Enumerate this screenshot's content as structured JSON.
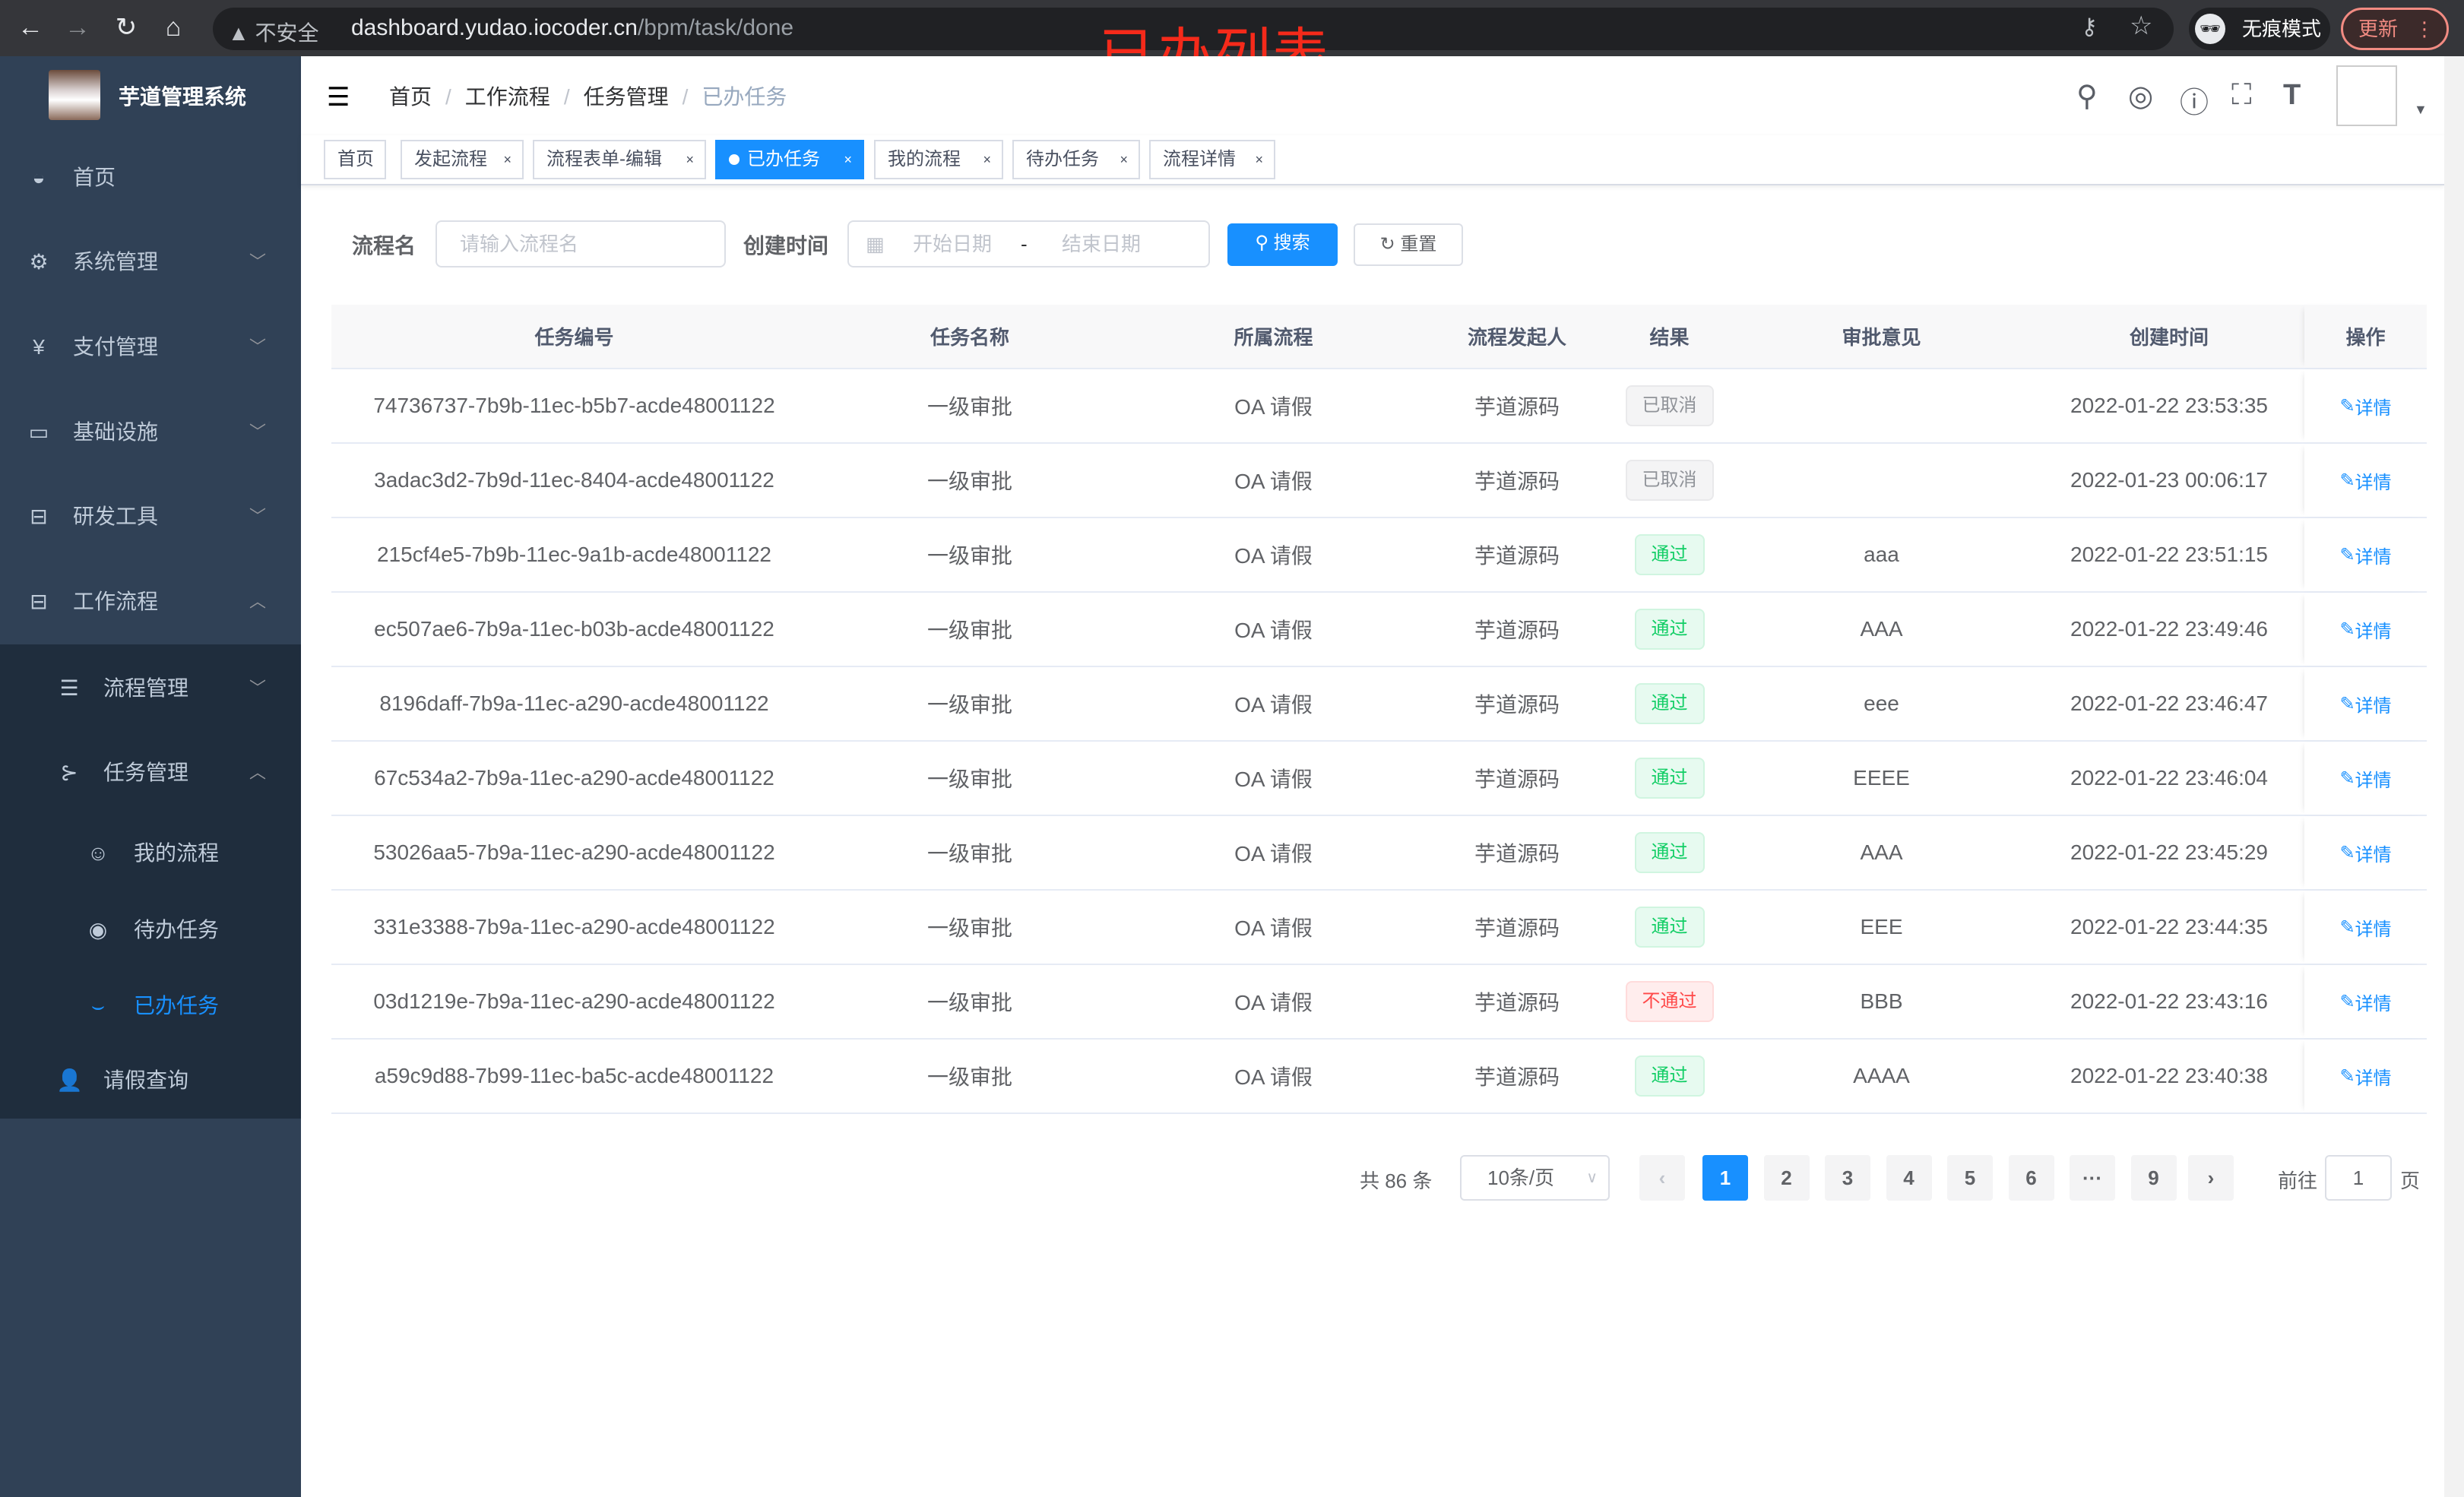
{
  "browser": {
    "insecure_label": "不安全",
    "url_host": "dashboard.yudao.iocoder.cn",
    "url_path": "/bpm/task/done",
    "incognito_label": "无痕模式",
    "update_label": "更新"
  },
  "annotation_title": "已办列表",
  "sidebar": {
    "title": "芋道管理系统",
    "items": [
      {
        "label": "首页",
        "icon": "dashboard-icon"
      },
      {
        "label": "系统管理",
        "icon": "gear-icon"
      },
      {
        "label": "支付管理",
        "icon": "yen-icon"
      },
      {
        "label": "基础设施",
        "icon": "monitor-icon"
      },
      {
        "label": "研发工具",
        "icon": "toolbox-icon"
      },
      {
        "label": "工作流程",
        "icon": "toolbox-icon"
      },
      {
        "label": "流程管理",
        "icon": "list-icon"
      },
      {
        "label": "任务管理",
        "icon": "tree-icon"
      },
      {
        "label": "我的流程",
        "icon": "people-icon"
      },
      {
        "label": "待办任务",
        "icon": "eye-icon"
      },
      {
        "label": "已办任务",
        "icon": "eye-closed-icon",
        "active": true
      },
      {
        "label": "请假查询",
        "icon": "user-icon"
      }
    ]
  },
  "breadcrumb": [
    "首页",
    "工作流程",
    "任务管理",
    "已办任务"
  ],
  "tags": [
    {
      "label": "首页"
    },
    {
      "label": "发起流程"
    },
    {
      "label": "流程表单-编辑"
    },
    {
      "label": "已办任务",
      "active": true
    },
    {
      "label": "我的流程"
    },
    {
      "label": "待办任务"
    },
    {
      "label": "流程详情"
    }
  ],
  "search": {
    "name_label": "流程名",
    "name_placeholder": "请输入流程名",
    "time_label": "创建时间",
    "start_placeholder": "开始日期",
    "range_sep": "-",
    "end_placeholder": "结束日期",
    "search_button": "搜索",
    "reset_button": "重置"
  },
  "table": {
    "columns": [
      "任务编号",
      "任务名称",
      "所属流程",
      "流程发起人",
      "结果",
      "审批意见",
      "创建时间",
      "操作"
    ],
    "rows": [
      {
        "id": "74736737-7b9b-11ec-b5b7-acde48001122",
        "name": "一级审批",
        "process": "OA 请假",
        "starter": "芋道源码",
        "result": "已取消",
        "result_type": "cancel",
        "comment": "",
        "time": "2022-01-22 23:53:35",
        "action": "详情"
      },
      {
        "id": "3adac3d2-7b9d-11ec-8404-acde48001122",
        "name": "一级审批",
        "process": "OA 请假",
        "starter": "芋道源码",
        "result": "已取消",
        "result_type": "cancel",
        "comment": "",
        "time": "2022-01-23 00:06:17",
        "action": "详情"
      },
      {
        "id": "215cf4e5-7b9b-11ec-9a1b-acde48001122",
        "name": "一级审批",
        "process": "OA 请假",
        "starter": "芋道源码",
        "result": "通过",
        "result_type": "pass",
        "comment": "aaa",
        "time": "2022-01-22 23:51:15",
        "action": "详情"
      },
      {
        "id": "ec507ae6-7b9a-11ec-b03b-acde48001122",
        "name": "一级审批",
        "process": "OA 请假",
        "starter": "芋道源码",
        "result": "通过",
        "result_type": "pass",
        "comment": "AAA",
        "time": "2022-01-22 23:49:46",
        "action": "详情"
      },
      {
        "id": "8196daff-7b9a-11ec-a290-acde48001122",
        "name": "一级审批",
        "process": "OA 请假",
        "starter": "芋道源码",
        "result": "通过",
        "result_type": "pass",
        "comment": "eee",
        "time": "2022-01-22 23:46:47",
        "action": "详情"
      },
      {
        "id": "67c534a2-7b9a-11ec-a290-acde48001122",
        "name": "一级审批",
        "process": "OA 请假",
        "starter": "芋道源码",
        "result": "通过",
        "result_type": "pass",
        "comment": "EEEE",
        "time": "2022-01-22 23:46:04",
        "action": "详情"
      },
      {
        "id": "53026aa5-7b9a-11ec-a290-acde48001122",
        "name": "一级审批",
        "process": "OA 请假",
        "starter": "芋道源码",
        "result": "通过",
        "result_type": "pass",
        "comment": "AAA",
        "time": "2022-01-22 23:45:29",
        "action": "详情"
      },
      {
        "id": "331e3388-7b9a-11ec-a290-acde48001122",
        "name": "一级审批",
        "process": "OA 请假",
        "starter": "芋道源码",
        "result": "通过",
        "result_type": "pass",
        "comment": "EEE",
        "time": "2022-01-22 23:44:35",
        "action": "详情"
      },
      {
        "id": "03d1219e-7b9a-11ec-a290-acde48001122",
        "name": "一级审批",
        "process": "OA 请假",
        "starter": "芋道源码",
        "result": "不通过",
        "result_type": "reject",
        "comment": "BBB",
        "time": "2022-01-22 23:43:16",
        "action": "详情"
      },
      {
        "id": "a59c9d88-7b99-11ec-ba5c-acde48001122",
        "name": "一级审批",
        "process": "OA 请假",
        "starter": "芋道源码",
        "result": "通过",
        "result_type": "pass",
        "comment": "AAAA",
        "time": "2022-01-22 23:40:38",
        "action": "详情"
      }
    ]
  },
  "pagination": {
    "total_label": "共 86 条",
    "page_size": "10条/页",
    "pages": [
      "1",
      "2",
      "3",
      "4",
      "5",
      "6",
      "···",
      "9"
    ],
    "current": "1",
    "goto_label": "前往",
    "goto_value": "1",
    "page_suffix": "页"
  },
  "colors": {
    "accent": "#1890ff",
    "sidebar_bg": "#304156",
    "submenu_bg": "#1f2d3d",
    "pass": "#13ce66",
    "reject": "#ff4949",
    "cancel": "#909399",
    "annotation": "#f52a1a"
  }
}
